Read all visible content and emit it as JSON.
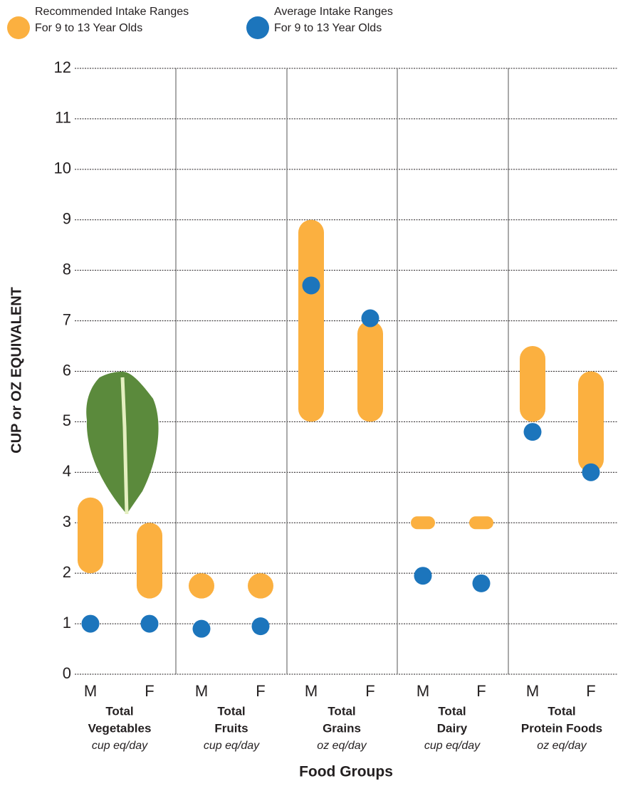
{
  "chart_data": {
    "type": "range_dot",
    "y_label": "CUP or OZ EQUIVALENT",
    "x_label": "Food Groups",
    "categories": [
      "M",
      "F",
      "M",
      "F",
      "M",
      "F",
      "M",
      "F",
      "M",
      "F"
    ],
    "groups": [
      {
        "lines": [
          "Total",
          "Vegetables"
        ],
        "unit": "cup eq/day"
      },
      {
        "lines": [
          "Total",
          "Fruits"
        ],
        "unit": "cup eq/day"
      },
      {
        "lines": [
          "Total",
          "Grains"
        ],
        "unit": "oz eq/day"
      },
      {
        "lines": [
          "Total",
          "Dairy"
        ],
        "unit": "cup eq/day"
      },
      {
        "lines": [
          "Total",
          "Protein Foods"
        ],
        "unit": "oz eq/day"
      }
    ],
    "series": [
      {
        "name": [
          "Recommended Intake Ranges",
          "For 9 to 13 Year Olds"
        ],
        "color": "#fbb040",
        "low": [
          2,
          1.5,
          1.5,
          1.5,
          5,
          5,
          3,
          3,
          5,
          4
        ],
        "high": [
          3.5,
          3,
          2,
          2,
          9,
          7,
          3,
          3,
          6.5,
          6
        ]
      },
      {
        "name": [
          "Average Intake Ranges",
          "For 9 to 13 Year Olds"
        ],
        "color": "#1c75bc",
        "values": [
          1,
          1,
          0.9,
          0.95,
          7.7,
          7.05,
          1.95,
          1.8,
          4.8,
          4
        ]
      }
    ],
    "ylim": [
      0,
      12
    ],
    "yticks": [
      0,
      1,
      2,
      3,
      4,
      5,
      6,
      7,
      8,
      9,
      10,
      11,
      12
    ],
    "grid": true
  }
}
